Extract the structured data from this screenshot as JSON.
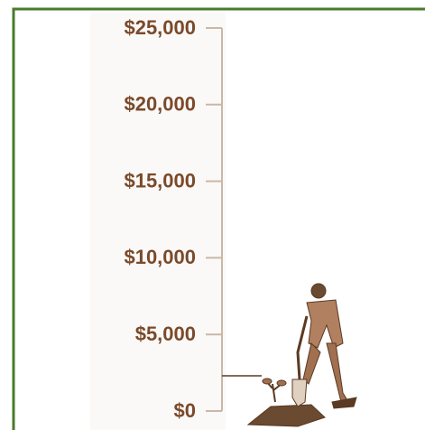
{
  "chart_data": {
    "type": "bar",
    "categories": [
      null
    ],
    "values": [
      2300
    ],
    "color": "#5a3a22",
    "ylim": [
      0,
      25000
    ],
    "yticks": [
      {
        "value": 0,
        "label": "$0"
      },
      {
        "value": 5000,
        "label": "$5,000"
      },
      {
        "value": 10000,
        "label": "$10,000"
      },
      {
        "value": 15000,
        "label": "$15,000"
      },
      {
        "value": 20000,
        "label": "$20,000"
      },
      {
        "value": 25000,
        "label": "$25,000"
      }
    ]
  }
}
